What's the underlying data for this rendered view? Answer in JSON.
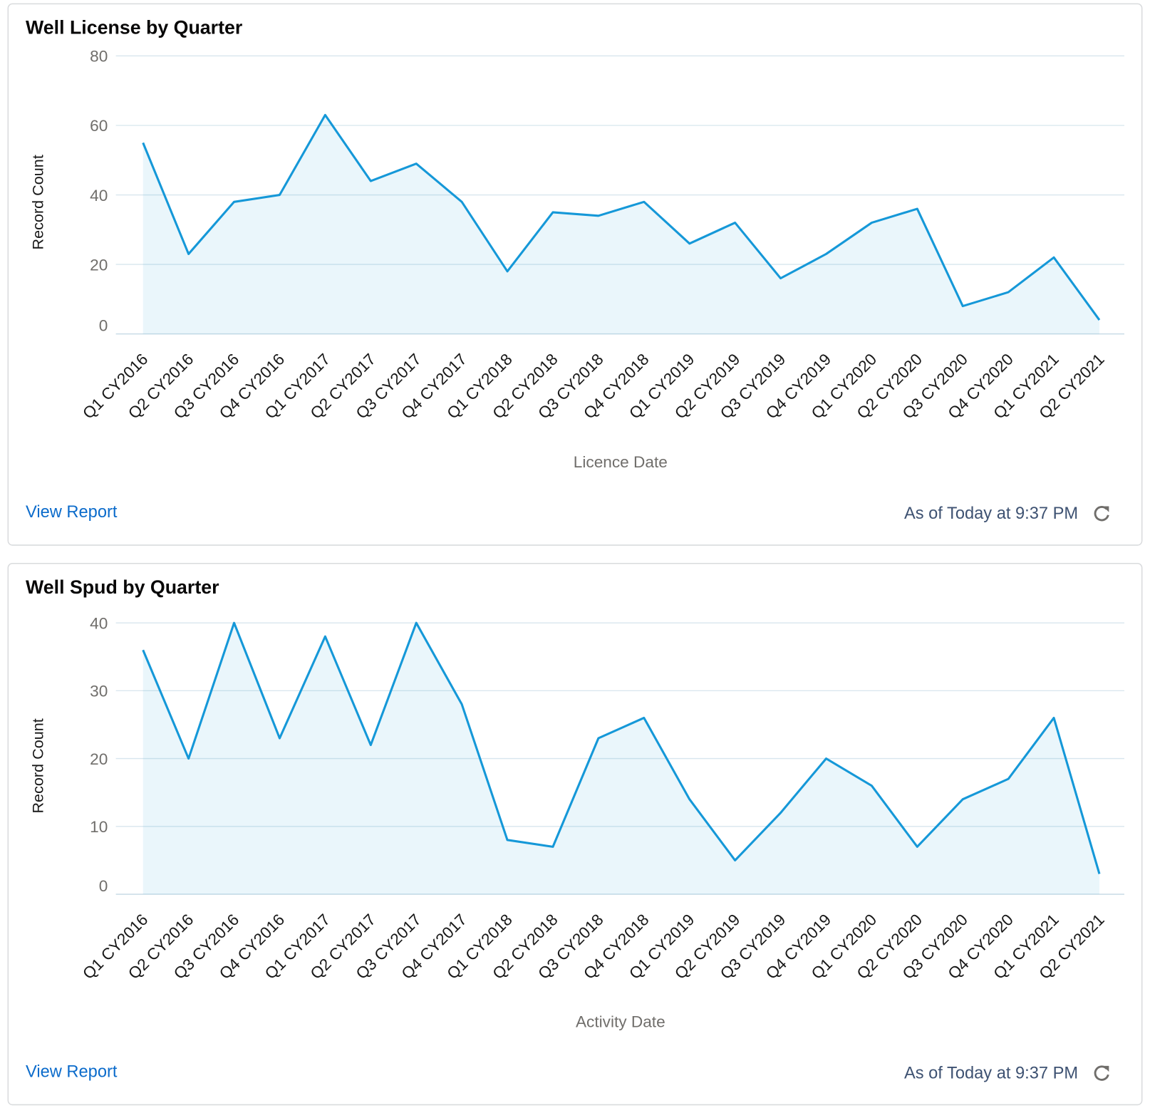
{
  "chart_data": [
    {
      "type": "area",
      "title": "Well License by Quarter",
      "y_label": "Record Count",
      "x_label": "Licence Date",
      "categories": [
        "Q1 CY2016",
        "Q2 CY2016",
        "Q3 CY2016",
        "Q4 CY2016",
        "Q1 CY2017",
        "Q2 CY2017",
        "Q3 CY2017",
        "Q4 CY2017",
        "Q1 CY2018",
        "Q2 CY2018",
        "Q3 CY2018",
        "Q4 CY2018",
        "Q1 CY2019",
        "Q2 CY2019",
        "Q3 CY2019",
        "Q4 CY2019",
        "Q1 CY2020",
        "Q2 CY2020",
        "Q3 CY2020",
        "Q4 CY2020",
        "Q1 CY2021",
        "Q2 CY2021"
      ],
      "values": [
        55,
        23,
        38,
        40,
        63,
        44,
        49,
        38,
        18,
        35,
        34,
        38,
        26,
        32,
        16,
        23,
        32,
        36,
        8,
        12,
        22,
        4
      ],
      "color": "#1598d8",
      "ylim": [
        0,
        80
      ],
      "yticks": [
        0,
        20,
        40,
        60,
        80
      ],
      "grid": true,
      "link": "View Report",
      "timestamp": "As of Today at 9:37 PM"
    },
    {
      "type": "area",
      "title": "Well Spud by Quarter",
      "y_label": "Record Count",
      "x_label": "Activity Date",
      "categories": [
        "Q1 CY2016",
        "Q2 CY2016",
        "Q3 CY2016",
        "Q4 CY2016",
        "Q1 CY2017",
        "Q2 CY2017",
        "Q3 CY2017",
        "Q4 CY2017",
        "Q1 CY2018",
        "Q2 CY2018",
        "Q3 CY2018",
        "Q4 CY2018",
        "Q1 CY2019",
        "Q2 CY2019",
        "Q3 CY2019",
        "Q4 CY2019",
        "Q1 CY2020",
        "Q2 CY2020",
        "Q3 CY2020",
        "Q4 CY2020",
        "Q1 CY2021",
        "Q2 CY2021"
      ],
      "values": [
        36,
        20,
        40,
        23,
        38,
        22,
        40,
        28,
        8,
        7,
        23,
        26,
        14,
        5,
        12,
        20,
        16,
        7,
        14,
        17,
        26,
        3
      ],
      "color": "#1598d8",
      "ylim": [
        0,
        40
      ],
      "yticks": [
        0,
        10,
        20,
        30,
        40
      ],
      "grid": true,
      "link": "View Report",
      "timestamp": "As of Today at 9:37 PM"
    }
  ]
}
